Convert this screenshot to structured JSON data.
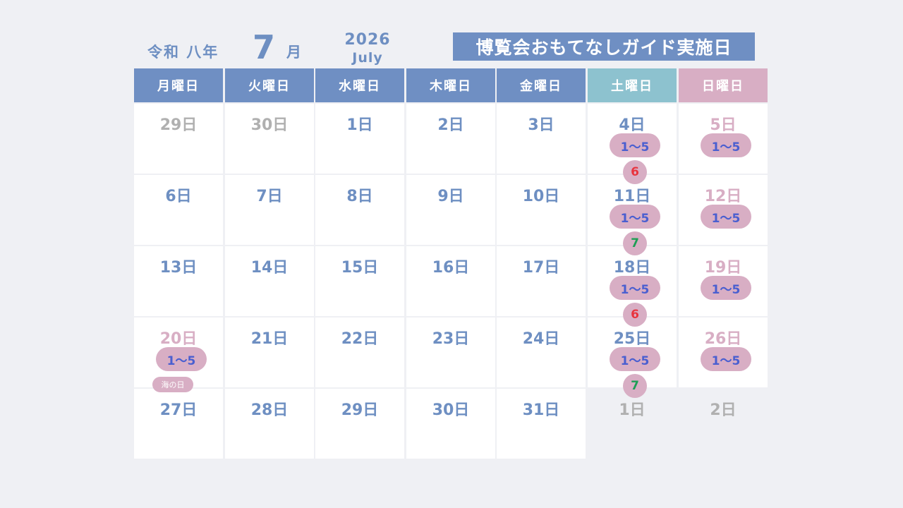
{
  "header": {
    "era": "令和 八年",
    "month_num": "7",
    "month_kanji": "月",
    "year": "2026",
    "month_en": "July",
    "banner": "博覧会おもてなしガイド実施日"
  },
  "weekdays": [
    "月曜日",
    "火曜日",
    "水曜日",
    "木曜日",
    "金曜日",
    "土曜日",
    "日曜日"
  ],
  "colors": {
    "primary_blue": "#6f8fc3",
    "saturday_teal": "#8dc2cf",
    "sunday_pink": "#d8aec4",
    "other_month_gray": "#b0b0b0",
    "pill_text_blue": "#4a5fd0",
    "mark_red": "#e8343e",
    "mark_green": "#1e9e55"
  },
  "weeks": [
    [
      {
        "date": "29日",
        "other": true
      },
      {
        "date": "30日",
        "other": true
      },
      {
        "date": "1日"
      },
      {
        "date": "2日"
      },
      {
        "date": "3日"
      },
      {
        "date": "4日",
        "pill": "1～5",
        "mark": "6",
        "mark_color": "red"
      },
      {
        "date": "5日",
        "sunday": true,
        "pill": "1～5"
      }
    ],
    [
      {
        "date": "6日"
      },
      {
        "date": "7日"
      },
      {
        "date": "8日"
      },
      {
        "date": "9日"
      },
      {
        "date": "10日"
      },
      {
        "date": "11日",
        "pill": "1～5",
        "mark": "7",
        "mark_color": "green"
      },
      {
        "date": "12日",
        "sunday": true,
        "pill": "1～5"
      }
    ],
    [
      {
        "date": "13日"
      },
      {
        "date": "14日"
      },
      {
        "date": "15日"
      },
      {
        "date": "16日"
      },
      {
        "date": "17日"
      },
      {
        "date": "18日",
        "pill": "1～5",
        "mark": "6",
        "mark_color": "red"
      },
      {
        "date": "19日",
        "sunday": true,
        "pill": "1～5"
      }
    ],
    [
      {
        "date": "20日",
        "sunday": true,
        "pill": "1～5",
        "holiday": "海の日"
      },
      {
        "date": "21日"
      },
      {
        "date": "22日"
      },
      {
        "date": "23日"
      },
      {
        "date": "24日"
      },
      {
        "date": "25日",
        "pill": "1～5",
        "mark": "7",
        "mark_color": "green"
      },
      {
        "date": "26日",
        "sunday": true,
        "pill": "1～5"
      }
    ],
    [
      {
        "date": "27日"
      },
      {
        "date": "28日"
      },
      {
        "date": "29日"
      },
      {
        "date": "30日"
      },
      {
        "date": "31日"
      },
      {
        "date": "1日",
        "other": true,
        "blank": true
      },
      {
        "date": "2日",
        "other": true,
        "blank": true
      }
    ]
  ]
}
